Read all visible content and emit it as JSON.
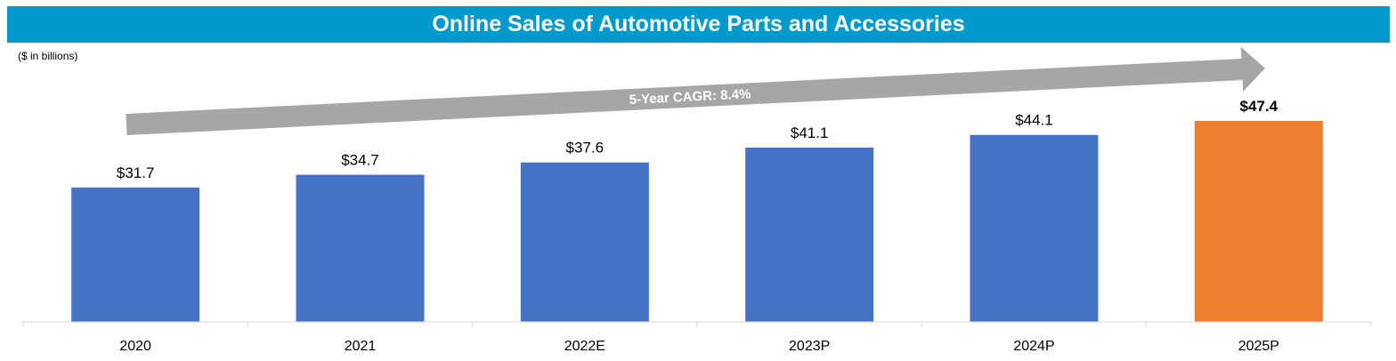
{
  "title": "Online Sales of Automotive Parts and Accessories",
  "unit_note": "($ in billions)",
  "arrow_label": "5-Year CAGR: 8.4%",
  "colors": {
    "title_bg": "#0099cc",
    "bar": "#4472c4",
    "highlight": "#ed7d31",
    "arrow": "#a6a6a6",
    "axis": "#d9d9d9"
  },
  "chart_data": {
    "type": "bar",
    "title": "Online Sales of Automotive Parts and Accessories",
    "ylabel": "$ in billions",
    "xlabel": "",
    "categories": [
      "2020",
      "2021",
      "2022E",
      "2023P",
      "2024P",
      "2025P"
    ],
    "values": [
      31.7,
      34.7,
      37.6,
      41.1,
      44.1,
      47.4
    ],
    "value_labels": [
      "$31.7",
      "$34.7",
      "$37.6",
      "$41.1",
      "$44.1",
      "$47.4"
    ],
    "highlight_index": 5,
    "annotation": "5-Year CAGR: 8.4%",
    "ylim": [
      0,
      50
    ],
    "grid": false
  }
}
